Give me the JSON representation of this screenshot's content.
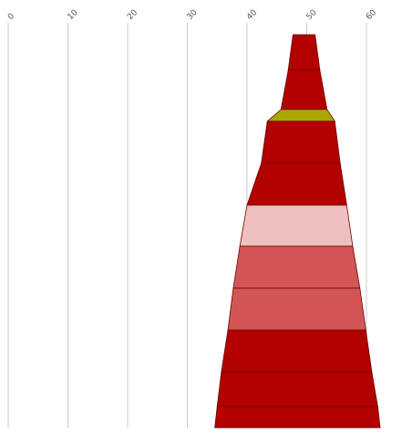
{
  "chart_data": {
    "type": "funnel",
    "title": "",
    "xlabel": "",
    "ylabel": "",
    "xlim": [
      0,
      60
    ],
    "grid": true,
    "x_ticks": [
      "0",
      "10",
      "20",
      "30",
      "40",
      "50",
      "60"
    ],
    "x_tick_values": [
      0,
      10,
      20,
      30,
      40,
      50,
      60
    ],
    "segments": [
      {
        "left": 47.7,
        "right": 51.4,
        "color": "#b30000"
      },
      {
        "left": 46.9,
        "right": 52.2,
        "color": "#b30000"
      },
      {
        "left": 45.7,
        "right": 53.4,
        "color": "#aaa800"
      },
      {
        "left": 43.4,
        "right": 54.7,
        "color": "#b30000"
      },
      {
        "left": 42.4,
        "right": 55.6,
        "color": "#b30000"
      },
      {
        "left": 40.0,
        "right": 56.7,
        "color": "#f0c0c0"
      },
      {
        "left": 38.8,
        "right": 57.7,
        "color": "#d45555"
      },
      {
        "left": 37.7,
        "right": 58.9,
        "color": "#d45555"
      },
      {
        "left": 36.8,
        "right": 59.9,
        "color": "#b30000"
      },
      {
        "left": 35.7,
        "right": 60.9,
        "color": "#b30000"
      },
      {
        "left": 35.0,
        "right": 61.9,
        "color": "#b30000"
      }
    ]
  }
}
